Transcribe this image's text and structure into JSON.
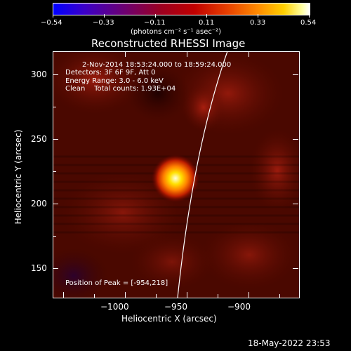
{
  "colorbar": {
    "ticks": [
      "−0.54",
      "−0.33",
      "−0.11",
      "0.11",
      "0.33",
      "0.54"
    ],
    "units_label": "(photons cm⁻² s⁻¹ asec⁻²)"
  },
  "title": "Reconstructed RHESSI Image",
  "info": {
    "time_range": "2-Nov-2014 18:53:24.000 to 18:59:24.000",
    "detectors": "Detectors: 3F 6F 9F, Att 0",
    "energy": "Energy Range: 3.0 - 6.0 keV",
    "algorithm": "Clean    Total counts: 1.93E+04",
    "peak": "Position of Peak = [-954,218]"
  },
  "axes": {
    "xlabel": "Heliocentric X (arcsec)",
    "ylabel": "Heliocentric Y (arcsec)",
    "xticks": [
      "−1000",
      "−950",
      "−900"
    ],
    "yticks": [
      "300",
      "250",
      "200",
      "150"
    ]
  },
  "footer_timestamp": "18-May-2022 23:53",
  "colors": {
    "background": "#000000",
    "foreground": "#ffffff",
    "limb": "#ffffff"
  }
}
